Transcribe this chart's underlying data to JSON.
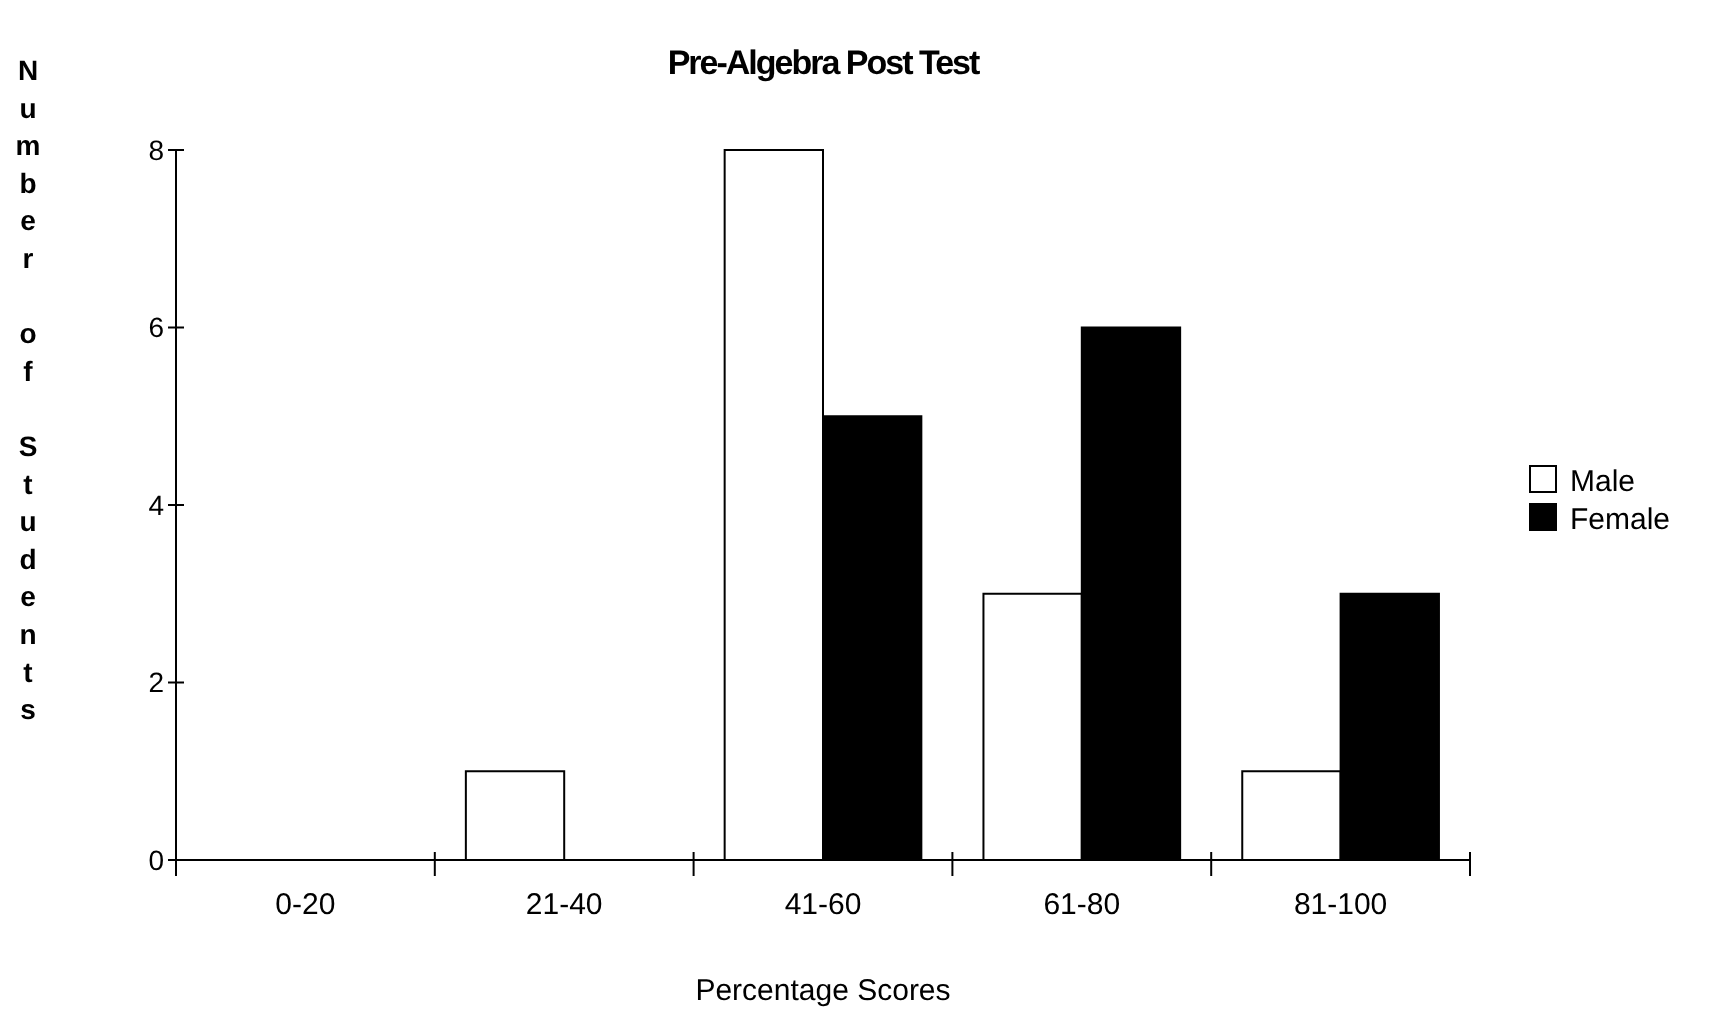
{
  "chart_data": {
    "type": "bar",
    "title": "Pre-Algebra Post Test",
    "xlabel": "Percentage Scores",
    "ylabel": "Number of Students",
    "categories": [
      "0-20",
      "21-40",
      "41-60",
      "61-80",
      "81-100"
    ],
    "series": [
      {
        "name": "Male",
        "color": "#ffffff",
        "values": [
          0,
          1,
          8,
          3,
          1
        ]
      },
      {
        "name": "Female",
        "color": "#000000",
        "values": [
          0,
          0,
          5,
          6,
          3
        ]
      }
    ],
    "ylim": [
      0,
      8
    ],
    "yticks": [
      0,
      2,
      4,
      6,
      8
    ],
    "grid": false,
    "legend": "right"
  }
}
